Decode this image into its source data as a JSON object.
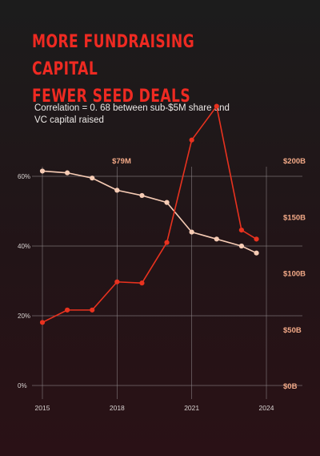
{
  "header": {
    "title_line1": "MORE FUNDRAISING CAPITAL",
    "title_line2": "FEWER SEED DEALS",
    "subtitle": "Correlation = 0. 68 between sub-$5M share and VC capital raised"
  },
  "colors": {
    "accent": "#ee2a22",
    "share_line": "#f6cbb4",
    "capital_line": "#e8321f",
    "right_axis_text": "#f2a987",
    "grid": "#8c8587"
  },
  "chart_data": {
    "type": "line",
    "title": "MORE FUNDRAISING CAPITAL FEWER SEED DEALS",
    "subtitle": "Correlation = 0. 68 between sub-$5M share and VC capital raised",
    "x": [
      2015,
      2016,
      2017,
      2018,
      2019,
      2020,
      2021,
      2022,
      2023,
      2023.6
    ],
    "xlim": [
      2015,
      2024
    ],
    "x_ticks": [
      "2015",
      "2018",
      "2021",
      "2024"
    ],
    "y_left": {
      "ticks": [
        "0%",
        "20%",
        "40%",
        "60%"
      ],
      "lim": [
        0,
        60
      ]
    },
    "y_right": {
      "ticks": [
        "$0B",
        "$50B",
        "$100B",
        "$150B",
        "$200B"
      ],
      "lim": [
        0,
        200
      ]
    },
    "series": [
      {
        "axis": "left",
        "values": [
          61.5,
          61,
          59.5,
          56,
          54.5,
          52.5,
          44,
          42,
          40,
          38
        ]
      },
      {
        "axis": "right",
        "values": [
          56,
          67,
          67,
          92,
          91,
          127,
          218,
          248,
          138,
          130
        ]
      }
    ],
    "annotations": [
      {
        "text": "$79M",
        "x": 2017.8
      }
    ],
    "grid": true,
    "legend": "none"
  }
}
